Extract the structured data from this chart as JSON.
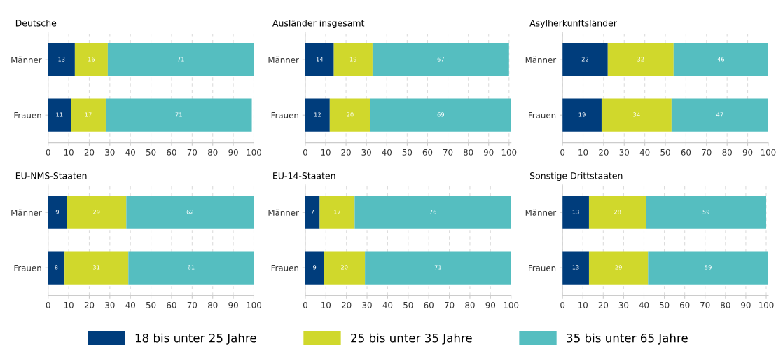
{
  "chart_data": [
    {
      "type": "bar",
      "orientation": "horizontal",
      "stacked": true,
      "data_labels": true,
      "grid": "x",
      "legend": "bottom",
      "title": "Deutsche",
      "categories": [
        "Männer",
        "Frauen"
      ],
      "xlim": [
        0,
        100
      ],
      "xticks": [
        0,
        10,
        20,
        30,
        40,
        50,
        60,
        70,
        80,
        90,
        100
      ],
      "series": [
        {
          "name": "18 bis unter 25 Jahre",
          "color": "#003d7c",
          "values": [
            13,
            11
          ]
        },
        {
          "name": "25 bis unter 35 Jahre",
          "color": "#d0d82c",
          "values": [
            16,
            17
          ]
        },
        {
          "name": "35 bis unter 65 Jahre",
          "color": "#55bec0",
          "values": [
            71,
            71
          ]
        }
      ]
    },
    {
      "type": "bar",
      "orientation": "horizontal",
      "stacked": true,
      "data_labels": true,
      "grid": "x",
      "title": "Ausländer insgesamt",
      "categories": [
        "Männer",
        "Frauen"
      ],
      "xlim": [
        0,
        101
      ],
      "xticks": [
        0,
        10,
        20,
        30,
        40,
        50,
        60,
        70,
        80,
        90,
        100
      ],
      "series": [
        {
          "color": "#003d7c",
          "values": [
            14,
            12
          ]
        },
        {
          "color": "#d0d82c",
          "values": [
            19,
            20
          ]
        },
        {
          "color": "#55bec0",
          "values": [
            67,
            69
          ]
        }
      ]
    },
    {
      "type": "bar",
      "orientation": "horizontal",
      "stacked": true,
      "data_labels": true,
      "grid": "x",
      "title": "Asylherkunftsländer",
      "categories": [
        "Männer",
        "Frauen"
      ],
      "xlim": [
        0,
        100
      ],
      "xticks": [
        0,
        10,
        20,
        30,
        40,
        50,
        60,
        70,
        80,
        90,
        100
      ],
      "series": [
        {
          "color": "#003d7c",
          "values": [
            22,
            19
          ]
        },
        {
          "color": "#d0d82c",
          "values": [
            32,
            34
          ]
        },
        {
          "color": "#55bec0",
          "values": [
            46,
            47
          ]
        }
      ]
    },
    {
      "type": "bar",
      "orientation": "horizontal",
      "stacked": true,
      "data_labels": true,
      "grid": "x",
      "title": "EU-NMS-Staaten",
      "categories": [
        "Männer",
        "Frauen"
      ],
      "xlim": [
        0,
        100
      ],
      "xticks": [
        0,
        10,
        20,
        30,
        40,
        50,
        60,
        70,
        80,
        90,
        100
      ],
      "series": [
        {
          "color": "#003d7c",
          "values": [
            9,
            8
          ]
        },
        {
          "color": "#d0d82c",
          "values": [
            29,
            31
          ]
        },
        {
          "color": "#55bec0",
          "values": [
            62,
            61
          ]
        }
      ]
    },
    {
      "type": "bar",
      "orientation": "horizontal",
      "stacked": true,
      "data_labels": true,
      "grid": "x",
      "title": "EU-14-Staaten",
      "categories": [
        "Männer",
        "Frauen"
      ],
      "xlim": [
        0,
        100
      ],
      "xticks": [
        0,
        10,
        20,
        30,
        40,
        50,
        60,
        70,
        80,
        90,
        100
      ],
      "series": [
        {
          "color": "#003d7c",
          "values": [
            7,
            9
          ]
        },
        {
          "color": "#d0d82c",
          "values": [
            17,
            20
          ]
        },
        {
          "color": "#55bec0",
          "values": [
            76,
            71
          ]
        }
      ]
    },
    {
      "type": "bar",
      "orientation": "horizontal",
      "stacked": true,
      "data_labels": true,
      "grid": "x",
      "title": "Sonstige Drittstaaten",
      "categories": [
        "Männer",
        "Frauen"
      ],
      "xlim": [
        0,
        101
      ],
      "xticks": [
        0,
        10,
        20,
        30,
        40,
        50,
        60,
        70,
        80,
        90,
        100
      ],
      "series": [
        {
          "color": "#003d7c",
          "values": [
            13,
            13
          ]
        },
        {
          "color": "#d0d82c",
          "values": [
            28,
            29
          ]
        },
        {
          "color": "#55bec0",
          "values": [
            59,
            59
          ]
        }
      ]
    }
  ]
}
